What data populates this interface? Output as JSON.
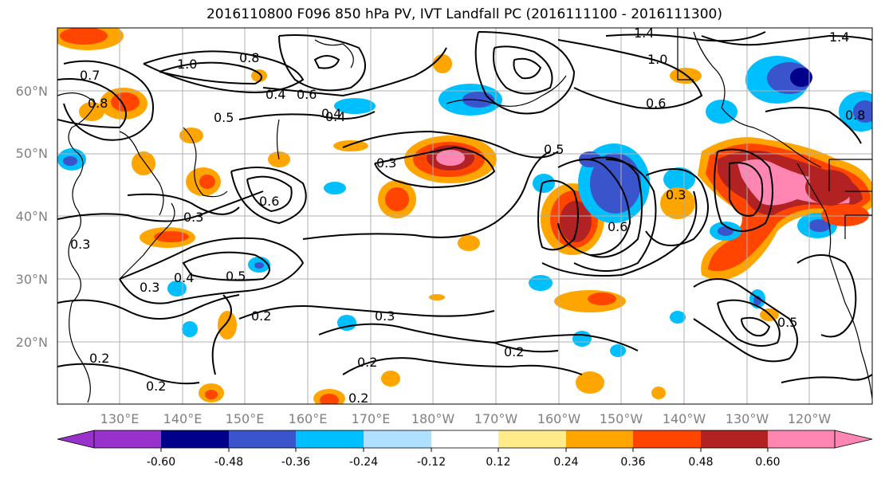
{
  "title": "2016110800 F096 850 hPa PV, IVT Landfall PC (2016111100 - 2016111300)",
  "map": {
    "lon_labels": [
      "130°E",
      "140°E",
      "150°E",
      "160°E",
      "170°E",
      "180°W",
      "170°W",
      "160°W",
      "150°W",
      "140°W",
      "130°W",
      "120°W"
    ],
    "lat_labels": [
      "60°N",
      "50°N",
      "40°N",
      "30°N",
      "20°N"
    ],
    "contour_labels": [
      "1.4",
      "1.0",
      "1.0",
      "1.4",
      "0.8",
      "0.7",
      "0.8",
      "0.6",
      "0.4",
      "0.4",
      "0.5",
      "0.3",
      "0.3",
      "0.6",
      "0.3",
      "0.2",
      "0.3",
      "0.4",
      "0.5",
      "0.3",
      "0.2",
      "0.2",
      "0.2",
      "0.2",
      "0.5",
      "0.6",
      "0.6",
      "0.3",
      "0.2",
      "0.4",
      "0.8",
      "0.5"
    ],
    "colors": {
      "land_outline": "#000000",
      "grid": "#b0b0b0",
      "contour": "#000000",
      "tick_label": "#808080"
    }
  },
  "colorbar": {
    "ticks": [
      "-0.60",
      "-0.48",
      "-0.36",
      "-0.24",
      "-0.12",
      "0.12",
      "0.24",
      "0.36",
      "0.48",
      "0.60"
    ],
    "colors": [
      "#9932cc",
      "#00008b",
      "#3a55cc",
      "#00bfff",
      "#b0e0ff",
      "#ffffff",
      "#ffeb8a",
      "#ffa500",
      "#ff4500",
      "#b22222",
      "#ff85b3"
    ]
  }
}
